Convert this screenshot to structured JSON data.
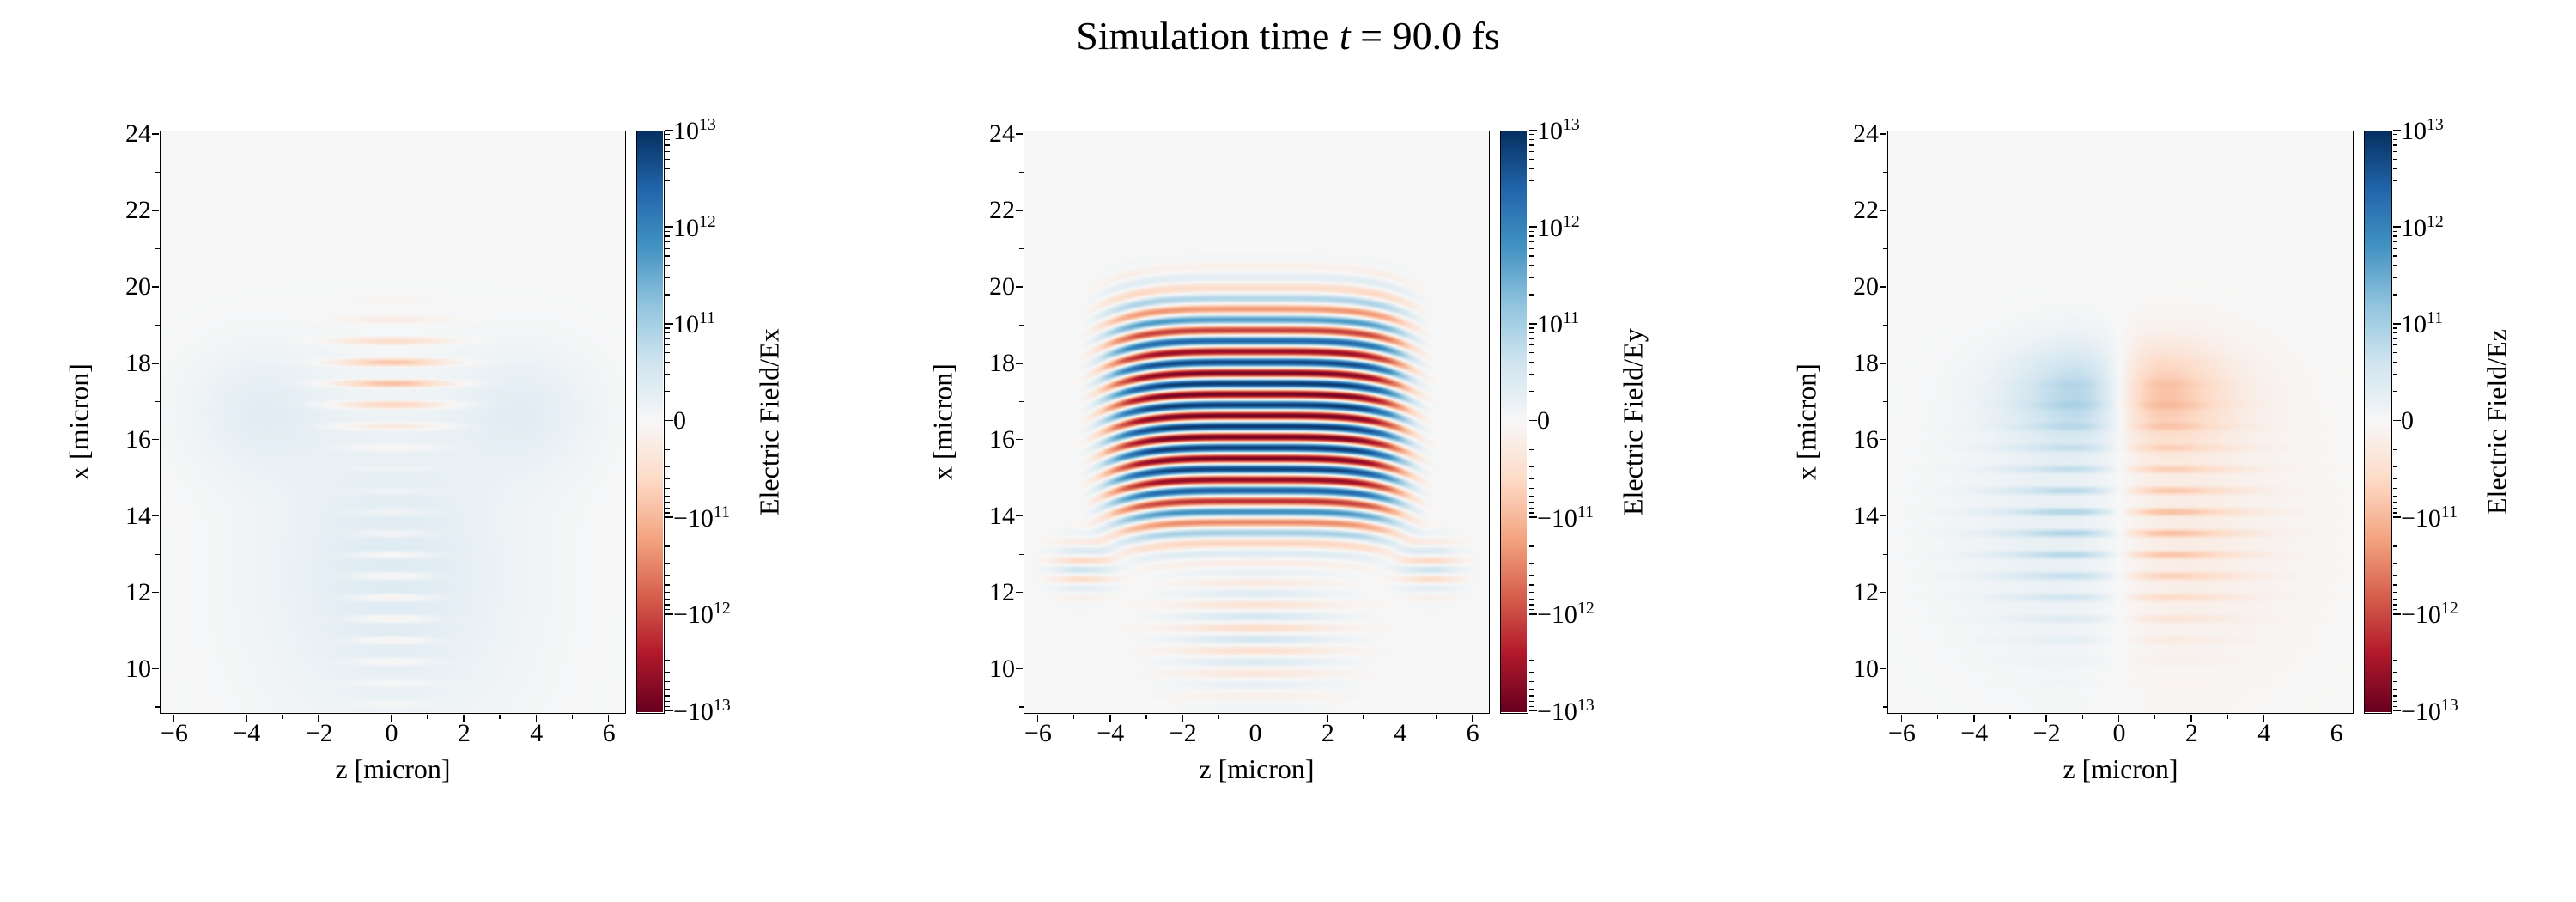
{
  "title": {
    "prefix": "Simulation time ",
    "var": "t",
    "suffix": " = 90.0 fs"
  },
  "simulation_time_fs": 90.0,
  "colors": {
    "figure_background": "#ffffff",
    "axes_line": "#000000",
    "zero_field": "#f7f7f7",
    "colormap_stops": [
      "#67001f",
      "#b2182b",
      "#d6604d",
      "#f4a582",
      "#fddbc7",
      "#f7f7f7",
      "#d1e5f0",
      "#92c5de",
      "#4393c3",
      "#2166ac",
      "#053061"
    ]
  },
  "chart_data": [
    {
      "type": "heatmap",
      "component": "Ex",
      "xlabel": "z [micron]",
      "ylabel": "x [micron]",
      "colorbar_label": "Electric Field/Ex",
      "xlim": [
        -6.4,
        6.4
      ],
      "ylim": [
        8.9,
        24.1
      ],
      "xticks": [
        -6,
        -4,
        -2,
        0,
        2,
        4,
        6
      ],
      "yticks": [
        24,
        22,
        20,
        18,
        16,
        14,
        12,
        10
      ],
      "xtick_labels": [
        "-6",
        "-4",
        "-2",
        "0",
        "2",
        "4",
        "6"
      ],
      "ytick_labels": [
        "24",
        "22",
        "20",
        "18",
        "16",
        "14",
        "12",
        "10"
      ],
      "colormap": "RdBu",
      "norm": "symlog",
      "colorbar_ticks": [
        "10^13",
        "10^12",
        "10^11",
        "0",
        "-10^11",
        "-10^12",
        "-10^13"
      ],
      "colorbar_decades": [
        10,
        11,
        12
      ],
      "description": "Weak transverse field: faint light-blue plume widening downward for x about 9-18 micron, faint orange fringe blob near x 16.5-19 centered at z=0, weak pink fringes low center.",
      "field_model": {
        "components": [
          {
            "amp": 0.13,
            "xc": 12.5,
            "sx": 4.0,
            "px": 2,
            "zc": 0,
            "sz": 3.4,
            "pz": 2
          },
          {
            "amp": 0.1,
            "xc": 16.8,
            "sx": 1.6,
            "px": 2,
            "zc": 3.6,
            "sz": 2.0,
            "pz": 2
          },
          {
            "amp": 0.1,
            "xc": 16.8,
            "sx": 1.6,
            "px": 2,
            "zc": -3.6,
            "sz": 2.0,
            "pz": 2
          },
          {
            "amp": -0.34,
            "xc": 17.6,
            "sx": 1.35,
            "px": 2,
            "zc": 0,
            "sz": 1.6,
            "pz": 2,
            "lam": 0.56,
            "rect": 1
          },
          {
            "amp": -0.16,
            "xc": 11.8,
            "sx": 2.6,
            "px": 2,
            "zc": 0,
            "sz": 1.1,
            "pz": 2,
            "lam": 0.56,
            "rect": 1
          }
        ]
      }
    },
    {
      "type": "heatmap",
      "component": "Ey",
      "xlabel": "z [micron]",
      "ylabel": "x [micron]",
      "colorbar_label": "Electric Field/Ey",
      "xlim": [
        -6.4,
        6.4
      ],
      "ylim": [
        8.9,
        24.1
      ],
      "xticks": [
        -6,
        -4,
        -2,
        0,
        2,
        4,
        6
      ],
      "yticks": [
        24,
        22,
        20,
        18,
        16,
        14,
        12,
        10
      ],
      "xtick_labels": [
        "-6",
        "-4",
        "-2",
        "0",
        "2",
        "4",
        "6"
      ],
      "ytick_labels": [
        "24",
        "22",
        "20",
        "18",
        "16",
        "14",
        "12",
        "10"
      ],
      "colormap": "RdBu",
      "norm": "symlog",
      "colorbar_ticks": [
        "10^13",
        "10^12",
        "10^11",
        "0",
        "-10^11",
        "-10^12",
        "-10^13"
      ],
      "colorbar_decades": [
        10,
        11,
        12
      ],
      "description": "Dominant field component: strong horizontal fringes of alternating sign (period about 0.56 micron) between x about 12.5 and 20.5 micron, spanning z about -4.5 to 4.5, saturated near x 14-19, fringes sag downward at the z edges, weak wavy pattern below x 12.5.",
      "field_model": {
        "components": [
          {
            "amp": 0.97,
            "xc": 16.6,
            "sx": 3.0,
            "px": 4,
            "zc": 0,
            "sz": 4.1,
            "pz": 8,
            "lam": 0.56,
            "bend": 0.6,
            "zb": 4.6
          },
          {
            "amp": 0.18,
            "xc": 11.0,
            "sx": 1.6,
            "px": 2,
            "zc": 0,
            "sz": 2.2,
            "pz": 2,
            "lam": 0.6,
            "phase": 1.5
          },
          {
            "amp": 0.22,
            "xc": 12.7,
            "sx": 0.7,
            "px": 2,
            "zc": 4.8,
            "sz": 0.8,
            "pz": 2,
            "lam": 0.5
          },
          {
            "amp": 0.22,
            "xc": 12.7,
            "sx": 0.7,
            "px": 2,
            "zc": -4.8,
            "sz": 0.8,
            "pz": 2,
            "lam": 0.5
          }
        ]
      }
    },
    {
      "type": "heatmap",
      "component": "Ez",
      "xlabel": "z [micron]",
      "ylabel": "x [micron]",
      "colorbar_label": "Electric Field/Ez",
      "xlim": [
        -6.4,
        6.4
      ],
      "ylim": [
        8.9,
        24.1
      ],
      "xticks": [
        -6,
        -4,
        -2,
        0,
        2,
        4,
        6
      ],
      "yticks": [
        24,
        22,
        20,
        18,
        16,
        14,
        12,
        10
      ],
      "xtick_labels": [
        "-6",
        "-4",
        "-2",
        "0",
        "2",
        "4",
        "6"
      ],
      "ytick_labels": [
        "24",
        "22",
        "20",
        "18",
        "16",
        "14",
        "12",
        "10"
      ],
      "colormap": "RdBu",
      "norm": "symlog",
      "colorbar_ticks": [
        "10^13",
        "10^12",
        "10^11",
        "0",
        "-10^11",
        "-10^12",
        "-10^13"
      ],
      "colorbar_decades": [
        10,
        11,
        12
      ],
      "description": "Antisymmetric in z: positive (blue) field for z<0 and negative (orange) for z>0 with a white node at z=0, smooth lobes near x 16-18.5 and fringed structure below down to x about 9.5.",
      "field_model": {
        "components": [
          {
            "amp": -0.42,
            "xc": 17.2,
            "sx": 1.3,
            "px": 2,
            "zc": 0,
            "sz": 2.6,
            "pz": 2,
            "odd": 1.1
          },
          {
            "amp": -0.35,
            "xc": 13.8,
            "sx": 2.4,
            "px": 2,
            "zc": 0,
            "sz": 2.8,
            "pz": 2,
            "lam": 0.56,
            "rect": 1,
            "odd": 1.1
          },
          {
            "amp": -0.12,
            "xc": 13.5,
            "sx": 3.2,
            "px": 2,
            "zc": 0,
            "sz": 3.8,
            "pz": 2,
            "odd": 1.5
          }
        ]
      }
    }
  ]
}
